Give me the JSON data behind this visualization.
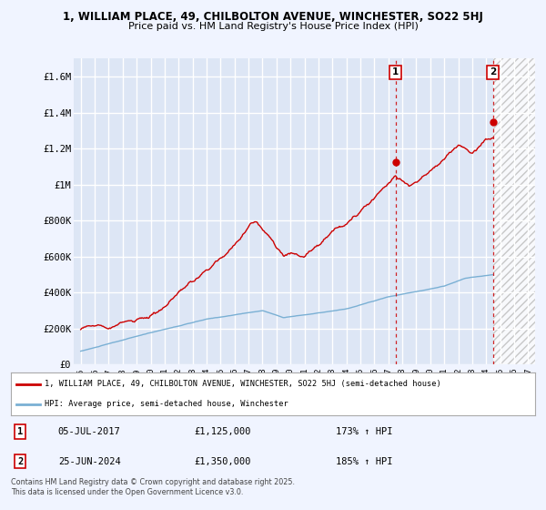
{
  "title_line1": "1, WILLIAM PLACE, 49, CHILBOLTON AVENUE, WINCHESTER, SO22 5HJ",
  "title_line2": "Price paid vs. HM Land Registry's House Price Index (HPI)",
  "background_color": "#f0f4ff",
  "plot_bg_color": "#dde6f5",
  "grid_color": "#ffffff",
  "red_color": "#cc0000",
  "blue_color": "#7ab0d4",
  "hatch_color": "#cccccc",
  "ylim": [
    0,
    1700000
  ],
  "yticks": [
    0,
    200000,
    400000,
    600000,
    800000,
    1000000,
    1200000,
    1400000,
    1600000
  ],
  "ytick_labels": [
    "£0",
    "£200K",
    "£400K",
    "£600K",
    "£800K",
    "£1M",
    "£1.2M",
    "£1.4M",
    "£1.6M"
  ],
  "xmin": 1994.5,
  "xmax": 2027.5,
  "hatch_start": 2024.5,
  "sale1_date": 2017.51,
  "sale1_price": 1125000,
  "sale1_label": "1",
  "sale2_date": 2024.48,
  "sale2_price": 1350000,
  "sale2_label": "2",
  "legend_line1": "1, WILLIAM PLACE, 49, CHILBOLTON AVENUE, WINCHESTER, SO22 5HJ (semi-detached house)",
  "legend_line2": "HPI: Average price, semi-detached house, Winchester",
  "annotation1_box": "1",
  "annotation1_date": "05-JUL-2017",
  "annotation1_price": "£1,125,000",
  "annotation1_hpi": "173% ↑ HPI",
  "annotation2_box": "2",
  "annotation2_date": "25-JUN-2024",
  "annotation2_price": "£1,350,000",
  "annotation2_hpi": "185% ↑ HPI",
  "footer": "Contains HM Land Registry data © Crown copyright and database right 2025.\nThis data is licensed under the Open Government Licence v3.0."
}
